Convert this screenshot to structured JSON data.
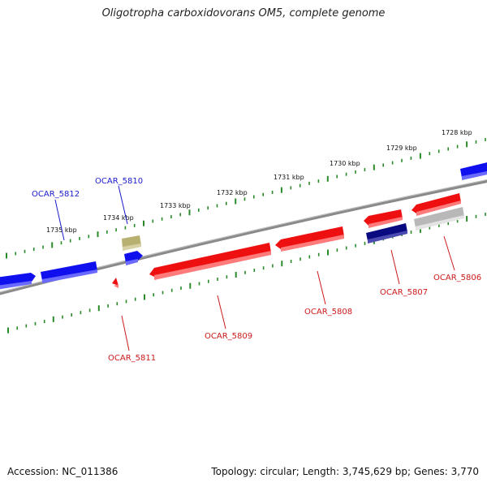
{
  "header": {
    "title": "Oligotropha carboxidovorans OM5, complete genome"
  },
  "footer": {
    "accession": "Accession: NC_011386",
    "summary": "Topology: circular; Length: 3,745,629 bp; Genes: 3,770"
  },
  "ruler": {
    "unit": "kbp",
    "labels": [
      "1728 kbp",
      "1729 kbp",
      "1730 kbp",
      "1731 kbp",
      "1732 kbp",
      "1733 kbp",
      "1734 kbp",
      "1735 kbp"
    ]
  },
  "colors": {
    "forward_gene": "#1010ee",
    "reverse_gene": "#ee1010",
    "dark_gene": "#0a0a80",
    "grey_gene": "#b8b8b8",
    "olive_gene": "#b8b070",
    "ticks": "#2a8a2a",
    "backbone": "#808080",
    "forward_label": "#1a1acc",
    "reverse_label": "#cc1a1a"
  },
  "genes": {
    "labels": [
      "OCAR_5812",
      "OCAR_5810",
      "OCAR_5811",
      "OCAR_5809",
      "OCAR_5808",
      "OCAR_5807",
      "OCAR_5806"
    ]
  }
}
